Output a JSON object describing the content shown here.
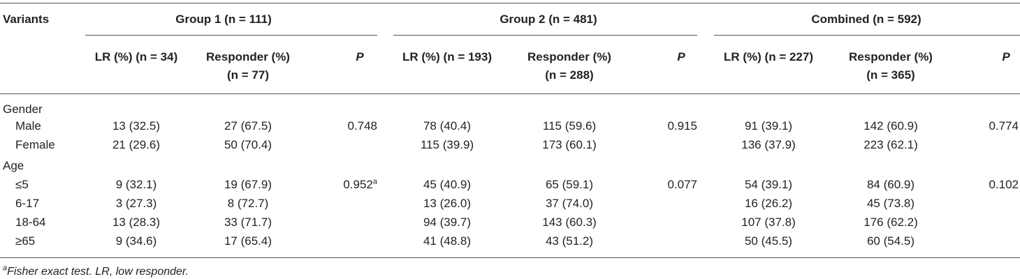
{
  "headers": {
    "variants": "Variants",
    "group1": "Group 1 (n = 111)",
    "group2": "Group 2 (n = 481)",
    "combined": "Combined (n = 592)",
    "g1_lr": "LR (%) (n = 34)",
    "g1_resp_l1": "Responder (%)",
    "g1_resp_l2": "(n = 77)",
    "g1_p": "P",
    "g2_lr": "LR (%) (n = 193)",
    "g2_resp_l1": "Responder (%)",
    "g2_resp_l2": "(n = 288)",
    "g2_p": "P",
    "c_lr": "LR (%) (n = 227)",
    "c_resp_l1": "Responder (%)",
    "c_resp_l2": "(n = 365)",
    "c_p": "P"
  },
  "sections": {
    "gender": "Gender",
    "age": "Age"
  },
  "rows": [
    {
      "label": "Male",
      "g1_lr": "13 (32.5)",
      "g1_resp": "27 (67.5)",
      "g1_p": "0.748",
      "g1_p_sup": "",
      "g2_lr": "78 (40.4)",
      "g2_resp": "115 (59.6)",
      "g2_p": "0.915",
      "c_lr": "91 (39.1)",
      "c_resp": "142 (60.9)",
      "c_p": "0.774"
    },
    {
      "label": "Female",
      "g1_lr": "21 (29.6)",
      "g1_resp": "50 (70.4)",
      "g1_p": "",
      "g1_p_sup": "",
      "g2_lr": "115 (39.9)",
      "g2_resp": "173 (60.1)",
      "g2_p": "",
      "c_lr": "136 (37.9)",
      "c_resp": "223 (62.1)",
      "c_p": ""
    },
    {
      "label": "≤5",
      "g1_lr": "9 (32.1)",
      "g1_resp": "19 (67.9)",
      "g1_p": "0.952",
      "g1_p_sup": "a",
      "g2_lr": "45 (40.9)",
      "g2_resp": "65 (59.1)",
      "g2_p": "0.077",
      "c_lr": "54 (39.1)",
      "c_resp": "84 (60.9)",
      "c_p": "0.102"
    },
    {
      "label": "6-17",
      "g1_lr": "3 (27.3)",
      "g1_resp": "8 (72.7)",
      "g1_p": "",
      "g1_p_sup": "",
      "g2_lr": "13 (26.0)",
      "g2_resp": "37 (74.0)",
      "g2_p": "",
      "c_lr": "16 (26.2)",
      "c_resp": "45 (73.8)",
      "c_p": ""
    },
    {
      "label": "18-64",
      "g1_lr": "13 (28.3)",
      "g1_resp": "33 (71.7)",
      "g1_p": "",
      "g1_p_sup": "",
      "g2_lr": "94 (39.7)",
      "g2_resp": "143 (60.3)",
      "g2_p": "",
      "c_lr": "107 (37.8)",
      "c_resp": "176 (62.2)",
      "c_p": ""
    },
    {
      "label": "≥65",
      "g1_lr": "9 (34.6)",
      "g1_resp": "17 (65.4)",
      "g1_p": "",
      "g1_p_sup": "",
      "g2_lr": "41 (48.8)",
      "g2_resp": "43 (51.2)",
      "g2_p": "",
      "c_lr": "50 (45.5)",
      "c_resp": "60 (54.5)",
      "c_p": ""
    }
  ],
  "footnote": {
    "sup": "a",
    "text": "Fisher exact test. LR, low responder."
  }
}
